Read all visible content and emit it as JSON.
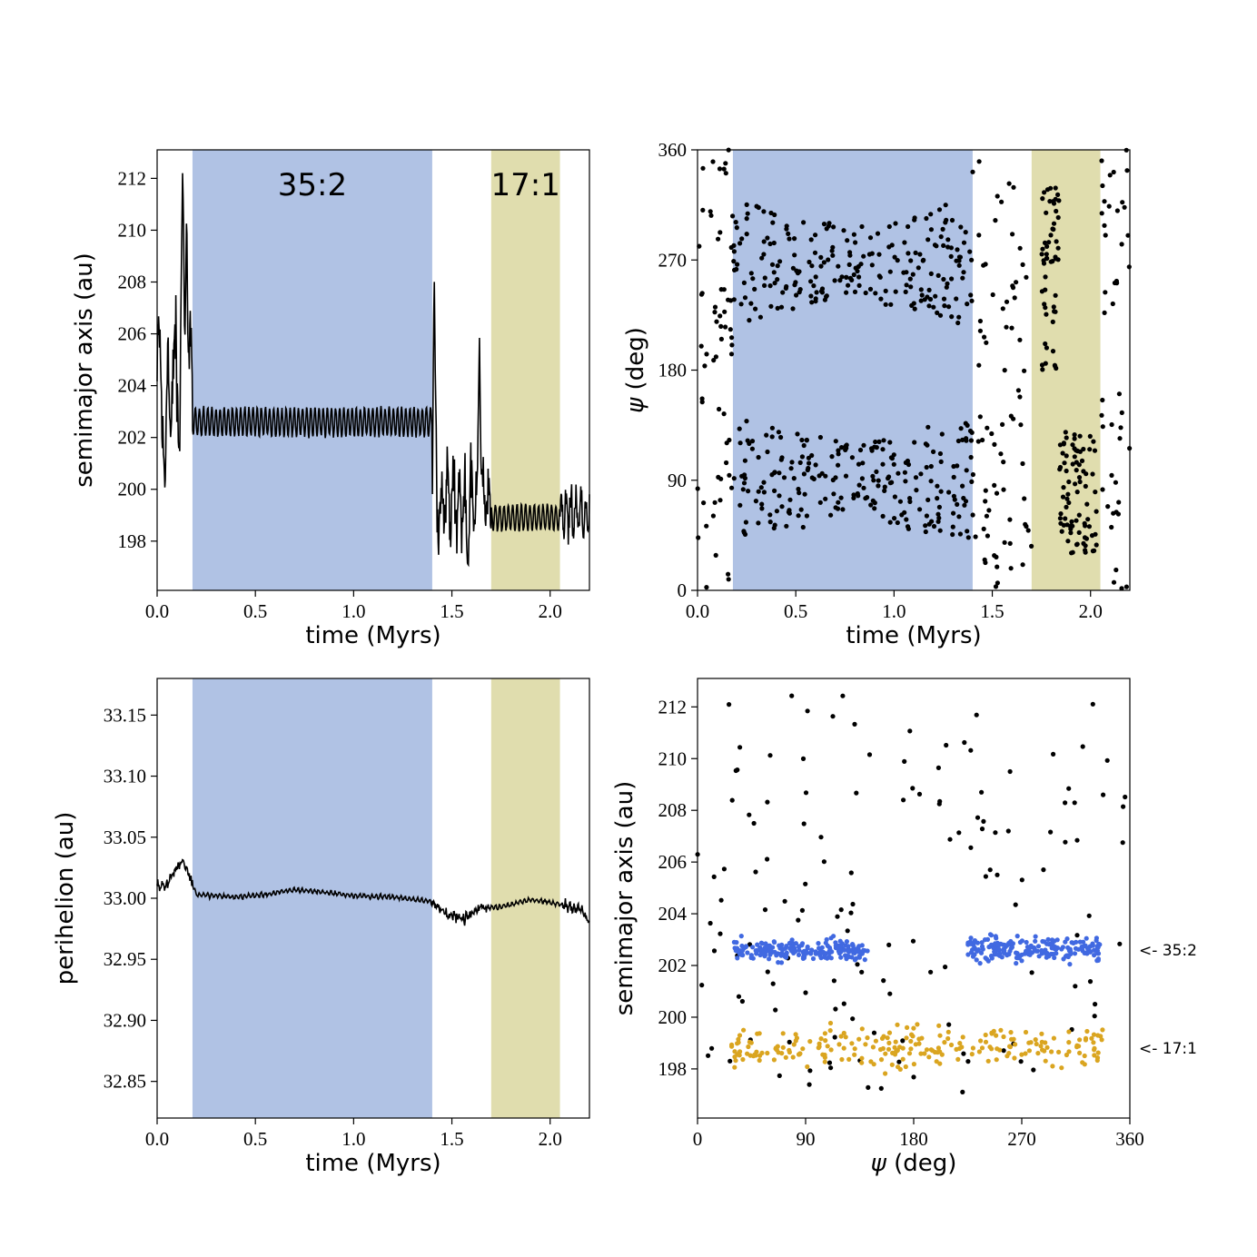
{
  "colors": {
    "resonance_35_2_band": "#b0c2e4",
    "resonance_17_1_band": "#e0ddae",
    "line": "#000000",
    "points": "#000000",
    "cluster_35_2": "#4169e1",
    "cluster_17_1": "#daa520"
  },
  "chart_data": [
    {
      "id": "top-left",
      "type": "line",
      "xlabel": "time (Myrs)",
      "ylabel": "semimajor axis (au)",
      "xlim": [
        0,
        2.2
      ],
      "ylim": [
        196.1,
        213.1
      ],
      "xticks": [
        0.0,
        0.5,
        1.0,
        1.5,
        2.0
      ],
      "xtick_labels": [
        "0.0",
        "0.5",
        "1.0",
        "1.5",
        "2.0"
      ],
      "yticks": [
        198,
        200,
        202,
        204,
        206,
        208,
        210,
        212
      ],
      "ytick_labels": [
        "198",
        "200",
        "202",
        "204",
        "206",
        "208",
        "210",
        "212"
      ],
      "bands": [
        {
          "label": "35:2",
          "x0": 0.18,
          "x1": 1.4,
          "color_key": "resonance_35_2_band"
        },
        {
          "label": "17:1",
          "x0": 1.7,
          "x1": 2.05,
          "color_key": "resonance_17_1_band"
        }
      ],
      "series": [
        {
          "segments": [
            {
              "x0": 0.0,
              "x1": 0.18,
              "base": 204.0,
              "amp": 3.5,
              "period": 0.04
            },
            {
              "x0": 0.18,
              "x1": 1.4,
              "base": 202.6,
              "amp": 0.55,
              "period": 0.021
            },
            {
              "x0": 1.4,
              "x1": 1.7,
              "base": 199.5,
              "amp": 2.0,
              "period": 0.03
            },
            {
              "x0": 1.7,
              "x1": 2.05,
              "base": 198.9,
              "amp": 0.5,
              "period": 0.022
            },
            {
              "x0": 2.05,
              "x1": 2.2,
              "base": 199.0,
              "amp": 1.2,
              "period": 0.025
            }
          ],
          "spikes": [
            {
              "x": 0.04,
              "y": 199.8
            },
            {
              "x": 0.13,
              "y": 212.5
            },
            {
              "x": 0.15,
              "y": 210.9
            },
            {
              "x": 1.41,
              "y": 208.3
            },
            {
              "x": 1.64,
              "y": 206.0
            },
            {
              "x": 1.58,
              "y": 197.0
            }
          ]
        }
      ]
    },
    {
      "id": "top-right",
      "type": "scatter",
      "xlabel": "ψ (deg)",
      "ylabel_prefix": "ψ",
      "ylabel": "(deg)",
      "xlabel_prefix": "",
      "xlabel_text": "time (Myrs)",
      "xlim": [
        0,
        2.2
      ],
      "ylim": [
        0,
        360
      ],
      "xticks": [
        0.0,
        0.5,
        1.0,
        1.5,
        2.0
      ],
      "xtick_labels": [
        "0.0",
        "0.5",
        "1.0",
        "1.5",
        "2.0"
      ],
      "yticks": [
        0,
        90,
        180,
        270,
        360
      ],
      "ytick_labels": [
        "0",
        "90",
        "180",
        "270",
        "360"
      ],
      "bands": [
        {
          "x0": 0.18,
          "x1": 1.4,
          "color_key": "resonance_35_2_band"
        },
        {
          "x0": 1.7,
          "x1": 2.05,
          "color_key": "resonance_17_1_band"
        }
      ],
      "series": [
        {
          "groups": [
            {
              "x0": 0.0,
              "x1": 0.18,
              "n": 60,
              "y0": 0,
              "y1": 360
            },
            {
              "x0": 0.18,
              "x1": 1.4,
              "n": 230,
              "y0": 215,
              "y1": 320,
              "pinch": true,
              "center": 268
            },
            {
              "x0": 0.18,
              "x1": 1.4,
              "n": 230,
              "y0": 35,
              "y1": 140,
              "pinch": true,
              "center": 90
            },
            {
              "x0": 1.4,
              "x1": 1.7,
              "n": 75,
              "y0": 0,
              "y1": 360
            },
            {
              "x0": 1.75,
              "x1": 1.84,
              "n": 55,
              "y0": 180,
              "y1": 330
            },
            {
              "x0": 1.84,
              "x1": 2.03,
              "n": 85,
              "y0": 30,
              "y1": 130
            },
            {
              "x0": 2.05,
              "x1": 2.2,
              "n": 45,
              "y0": 0,
              "y1": 360
            }
          ]
        }
      ]
    },
    {
      "id": "bottom-left",
      "type": "line",
      "xlabel": "time (Myrs)",
      "ylabel": "perihelion (au)",
      "xlim": [
        0,
        2.2
      ],
      "ylim": [
        32.82,
        33.18
      ],
      "xticks": [
        0.0,
        0.5,
        1.0,
        1.5,
        2.0
      ],
      "xtick_labels": [
        "0.0",
        "0.5",
        "1.0",
        "1.5",
        "2.0"
      ],
      "yticks": [
        32.85,
        32.9,
        32.95,
        33.0,
        33.05,
        33.1,
        33.15
      ],
      "ytick_labels": [
        "32.85",
        "32.90",
        "32.95",
        "33.00",
        "33.05",
        "33.10",
        "33.15"
      ],
      "bands": [
        {
          "x0": 0.18,
          "x1": 1.4,
          "color_key": "resonance_35_2_band"
        },
        {
          "x0": 1.7,
          "x1": 2.05,
          "color_key": "resonance_17_1_band"
        }
      ],
      "series": [
        {
          "profile": [
            {
              "x": 0.0,
              "y": 33.01
            },
            {
              "x": 0.05,
              "y": 33.012
            },
            {
              "x": 0.1,
              "y": 33.025
            },
            {
              "x": 0.13,
              "y": 33.032
            },
            {
              "x": 0.16,
              "y": 33.02
            },
            {
              "x": 0.2,
              "y": 33.003
            },
            {
              "x": 0.4,
              "y": 33.001
            },
            {
              "x": 0.55,
              "y": 33.003
            },
            {
              "x": 0.7,
              "y": 33.007
            },
            {
              "x": 0.85,
              "y": 33.005
            },
            {
              "x": 1.0,
              "y": 33.002
            },
            {
              "x": 1.2,
              "y": 33.001
            },
            {
              "x": 1.38,
              "y": 32.998
            },
            {
              "x": 1.45,
              "y": 32.99
            },
            {
              "x": 1.55,
              "y": 32.982
            },
            {
              "x": 1.65,
              "y": 32.992
            },
            {
              "x": 1.75,
              "y": 32.993
            },
            {
              "x": 1.9,
              "y": 32.999
            },
            {
              "x": 2.05,
              "y": 32.995
            },
            {
              "x": 2.15,
              "y": 32.992
            },
            {
              "x": 2.2,
              "y": 32.98
            }
          ]
        }
      ]
    },
    {
      "id": "bottom-right",
      "type": "scatter",
      "xlabel_prefix": "ψ",
      "xlabel_text": "(deg)",
      "ylabel": "semimajor axis (au)",
      "xlim": [
        0,
        360
      ],
      "ylim": [
        196.1,
        213.1
      ],
      "xticks": [
        0,
        90,
        180,
        270,
        360
      ],
      "xtick_labels": [
        "0",
        "90",
        "180",
        "270",
        "360"
      ],
      "yticks": [
        198,
        200,
        202,
        204,
        206,
        208,
        210,
        212
      ],
      "ytick_labels": [
        "198",
        "200",
        "202",
        "204",
        "206",
        "208",
        "210",
        "212"
      ],
      "annotations": [
        {
          "text": "<- 35:2",
          "y": 202.6
        },
        {
          "text": "<- 17:1",
          "y": 198.8
        }
      ],
      "series": [
        {
          "name": "",
          "color_key": "points",
          "groups": [
            {
              "x0": 0,
              "x1": 360,
              "n": 140,
              "y0": 196.8,
              "y1": 212.6
            }
          ]
        },
        {
          "name": "",
          "color_key": "cluster_35_2",
          "groups": [
            {
              "x0": 30,
              "x1": 142,
              "n": 200,
              "y0": 202.0,
              "y1": 203.2
            },
            {
              "x0": 225,
              "x1": 335,
              "n": 200,
              "y0": 201.9,
              "y1": 203.3
            }
          ]
        },
        {
          "name": "",
          "color_key": "cluster_17_1",
          "groups": [
            {
              "x0": 28,
              "x1": 340,
              "n": 230,
              "y0": 197.7,
              "y1": 200.0
            }
          ]
        }
      ]
    }
  ],
  "band_labels": [
    "35:2",
    "17:1"
  ]
}
